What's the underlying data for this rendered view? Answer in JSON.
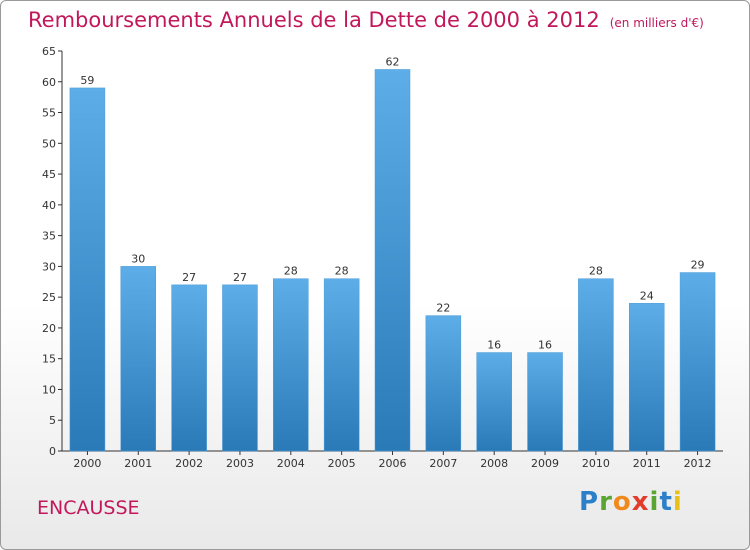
{
  "chart_data": {
    "type": "bar",
    "title": "Remboursements Annuels de la Dette de 2000 à 2012",
    "subtitle": "(en milliers d'€)",
    "categories": [
      "2000",
      "2001",
      "2002",
      "2003",
      "2004",
      "2005",
      "2006",
      "2007",
      "2008",
      "2009",
      "2010",
      "2011",
      "2012"
    ],
    "values": [
      59,
      30,
      27,
      27,
      28,
      28,
      62,
      22,
      16,
      16,
      28,
      24,
      29
    ],
    "ylim": [
      0,
      65
    ],
    "yticks": [
      0,
      5,
      10,
      15,
      20,
      25,
      30,
      35,
      40,
      45,
      50,
      55,
      60,
      65
    ],
    "grid": false,
    "legend": "none",
    "bar_color_top": "#5dade8",
    "bar_color_bottom": "#2a7ab8"
  },
  "footer": {
    "town": "ENCAUSSE",
    "logo_text": "Proxiti"
  },
  "colors": {
    "title": "#c2185b",
    "axis": "#333333"
  }
}
